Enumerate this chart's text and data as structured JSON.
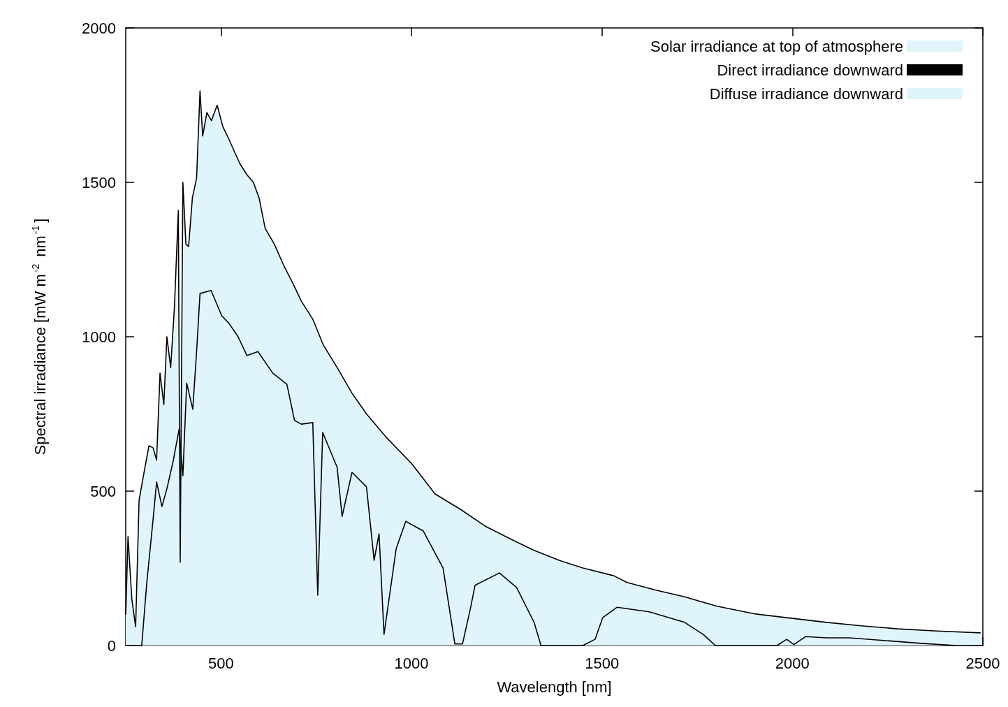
{
  "chart_data": {
    "type": "area",
    "xlabel": "Wavelength [nm]",
    "ylabel": "Spectral irradiance [mW m$^{-2}$ nm$^{-1}$]",
    "xlim": [
      250,
      2500
    ],
    "xticks": [
      500,
      1000,
      1500,
      2000,
      2500
    ],
    "ylim": [
      0,
      2000
    ],
    "yticks": [
      0,
      500,
      1000,
      1500,
      2000
    ],
    "grid": false,
    "legend": "top right",
    "marker": "none",
    "line_style": "solid",
    "series": [
      {
        "name": "Solar irradiance at top of atmosphere",
        "type": "area",
        "color": "#e0f4fc",
        "x": [
          250,
          256,
          266,
          276,
          285,
          298,
          311,
          322,
          331,
          340,
          350,
          358,
          368,
          378,
          388,
          393,
          400,
          408,
          415,
          425,
          436,
          445,
          452,
          463,
          475,
          490,
          505,
          520,
          535,
          550,
          568,
          585,
          600,
          616,
          640,
          664,
          690,
          711,
          741,
          768,
          805,
          844,
          882,
          934,
          1000,
          1062,
          1130,
          1193,
          1260,
          1322,
          1390,
          1450,
          1531,
          1566,
          1640,
          1717,
          1800,
          1904,
          2000,
          2090,
          2180,
          2276,
          2380,
          2494
        ],
        "values": [
          100,
          353,
          150,
          61,
          470,
          560,
          647,
          640,
          600,
          882,
          780,
          1000,
          900,
          1100,
          1409,
          270,
          1500,
          1300,
          1292,
          1450,
          1514,
          1796,
          1650,
          1726,
          1700,
          1750,
          1680,
          1642,
          1600,
          1560,
          1525,
          1500,
          1450,
          1351,
          1300,
          1233,
          1170,
          1115,
          1057,
          975,
          900,
          817,
          750,
          674,
          590,
          491,
          440,
          387,
          345,
          308,
          275,
          251,
          226,
          204,
          180,
          158,
          128,
          102,
          88,
          75,
          64,
          54,
          47,
          41
        ]
      },
      {
        "name": "Direct irradiance downward",
        "type": "line",
        "color": "#000000",
        "x": [
          250,
          292,
          305,
          322,
          331,
          345,
          358,
          375,
          390,
          400,
          410,
          426,
          436,
          445,
          474,
          502,
          520,
          545,
          568,
          597,
          636,
          673,
          693,
          711,
          741,
          754,
          767,
          805,
          818,
          844,
          882,
          902,
          915,
          928,
          960,
          985,
          1031,
          1083,
          1114,
          1134,
          1154,
          1167,
          1231,
          1276,
          1322,
          1340,
          1450,
          1482,
          1502,
          1540,
          1624,
          1717,
          1766,
          1798,
          1960,
          1985,
          2004,
          2035,
          2090,
          2150,
          2245,
          2338,
          2430,
          2500
        ],
        "values": [
          0,
          0,
          200,
          411,
          530,
          450,
          507,
          600,
          700,
          550,
          850,
          765,
          952,
          1140,
          1150,
          1068,
          1045,
          1000,
          939,
          952,
          882,
          846,
          729,
          717,
          722,
          163,
          690,
          577,
          418,
          561,
          514,
          276,
          362,
          36,
          314,
          402,
          371,
          251,
          5,
          5,
          115,
          195,
          235,
          188,
          75,
          0,
          0,
          20,
          90,
          124,
          109,
          75,
          36,
          0,
          0,
          20,
          3,
          29,
          25,
          25,
          16,
          7,
          0,
          0
        ]
      },
      {
        "name": "Diffuse irradiance downward",
        "type": "area",
        "color": "#e0f4fc",
        "values": [
          null,
          null
        ]
      }
    ]
  }
}
